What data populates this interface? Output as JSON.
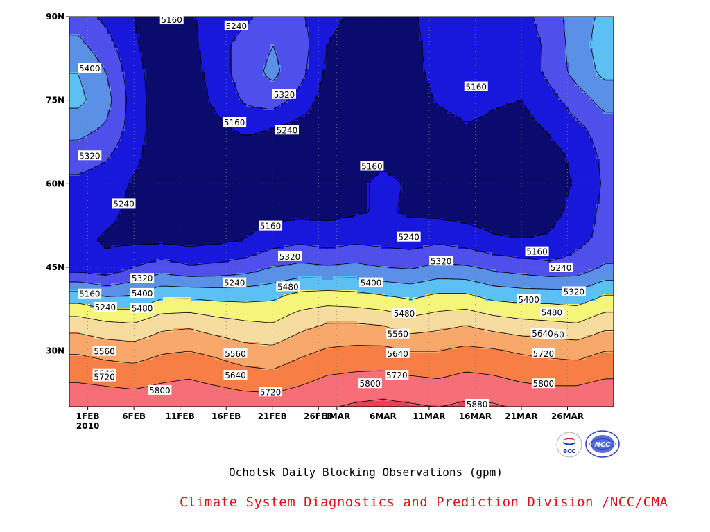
{
  "captions": {
    "title": "Ochotsk Daily Blocking Observations (gpm)",
    "organization": "Climate System Diagnostics and Prediction Division /NCC/CMA"
  },
  "logos": [
    {
      "name": "bcc-logo",
      "text": "BCC"
    },
    {
      "name": "ncc-logo",
      "text": "NCC"
    }
  ],
  "chart_data": {
    "type": "heatmap",
    "subtype": "filled-contour",
    "title": "",
    "xlabel": "",
    "ylabel": "",
    "x_unit": "date (2010)",
    "y_unit": "latitude (degrees N)",
    "xlim": [
      "2010-01-30",
      "2010-03-30"
    ],
    "ylim": [
      20,
      90
    ],
    "grid": true,
    "x_ticks": [
      {
        "day": 2,
        "label": "1FEB",
        "sublabel": "2010"
      },
      {
        "day": 7,
        "label": "6FEB"
      },
      {
        "day": 12,
        "label": "11FEB"
      },
      {
        "day": 17,
        "label": "16FEB"
      },
      {
        "day": 22,
        "label": "21FEB"
      },
      {
        "day": 27,
        "label": "26FEB"
      },
      {
        "day": 29,
        "label": "1MAR"
      },
      {
        "day": 34,
        "label": "6MAR"
      },
      {
        "day": 39,
        "label": "11MAR"
      },
      {
        "day": 44,
        "label": "16MAR"
      },
      {
        "day": 49,
        "label": "21MAR"
      },
      {
        "day": 54,
        "label": "26MAR"
      }
    ],
    "y_ticks": [
      {
        "lat": 30,
        "label": "30N"
      },
      {
        "lat": 45,
        "label": "45N"
      },
      {
        "lat": 60,
        "label": "60N"
      },
      {
        "lat": 75,
        "label": "75N"
      },
      {
        "lat": 90,
        "label": "90N"
      }
    ],
    "levels": [
      5160,
      5240,
      5320,
      5400,
      5480,
      5560,
      5640,
      5720,
      5800,
      5880
    ],
    "level_colors": [
      "#0b0b6e",
      "#1818dd",
      "#4f4fec",
      "#5a90e6",
      "#5cc0f5",
      "#f5f57a",
      "#f7dca0",
      "#f7a86a",
      "#f77e44",
      "#f56e78",
      "#ee3d55"
    ],
    "lats": [
      20,
      25,
      30,
      35,
      40,
      45,
      50,
      55,
      60,
      65,
      70,
      75,
      80,
      85,
      90
    ],
    "days": [
      1,
      4,
      7,
      10,
      13,
      16,
      19,
      22,
      25,
      28,
      31,
      34,
      37,
      40,
      43,
      46,
      49,
      52,
      55,
      58
    ],
    "values": [
      [
        5860,
        5855,
        5850,
        5855,
        5860,
        5860,
        5850,
        5850,
        5860,
        5875,
        5890,
        5900,
        5890,
        5880,
        5895,
        5890,
        5870,
        5860,
        5860,
        5875
      ],
      [
        5790,
        5780,
        5770,
        5790,
        5800,
        5780,
        5760,
        5750,
        5780,
        5810,
        5820,
        5825,
        5810,
        5800,
        5820,
        5810,
        5790,
        5780,
        5780,
        5800
      ],
      [
        5710,
        5690,
        5680,
        5710,
        5720,
        5700,
        5670,
        5660,
        5700,
        5730,
        5740,
        5740,
        5720,
        5720,
        5740,
        5730,
        5710,
        5700,
        5690,
        5720
      ],
      [
        5600,
        5570,
        5560,
        5610,
        5620,
        5590,
        5570,
        5560,
        5610,
        5640,
        5640,
        5630,
        5590,
        5610,
        5630,
        5600,
        5580,
        5570,
        5560,
        5610
      ],
      [
        5430,
        5390,
        5400,
        5460,
        5460,
        5450,
        5450,
        5460,
        5500,
        5510,
        5500,
        5480,
        5460,
        5490,
        5490,
        5450,
        5440,
        5440,
        5430,
        5480
      ],
      [
        5200,
        5180,
        5240,
        5280,
        5250,
        5260,
        5280,
        5320,
        5340,
        5330,
        5340,
        5320,
        5310,
        5340,
        5330,
        5300,
        5280,
        5260,
        5270,
        5330
      ],
      [
        5180,
        5150,
        5140,
        5140,
        5130,
        5140,
        5160,
        5200,
        5220,
        5200,
        5220,
        5210,
        5200,
        5220,
        5200,
        5170,
        5160,
        5170,
        5220,
        5260
      ],
      [
        5200,
        5180,
        5140,
        5120,
        5120,
        5120,
        5120,
        5130,
        5140,
        5140,
        5150,
        5170,
        5150,
        5140,
        5130,
        5120,
        5120,
        5130,
        5190,
        5260
      ],
      [
        5220,
        5200,
        5150,
        5110,
        5110,
        5110,
        5110,
        5110,
        5120,
        5120,
        5140,
        5180,
        5150,
        5130,
        5120,
        5110,
        5110,
        5120,
        5170,
        5250
      ],
      [
        5280,
        5250,
        5180,
        5110,
        5100,
        5100,
        5110,
        5110,
        5110,
        5110,
        5120,
        5140,
        5120,
        5110,
        5110,
        5110,
        5110,
        5130,
        5180,
        5260
      ],
      [
        5350,
        5310,
        5200,
        5110,
        5100,
        5140,
        5180,
        5160,
        5130,
        5110,
        5100,
        5100,
        5100,
        5120,
        5150,
        5140,
        5130,
        5170,
        5220,
        5280
      ],
      [
        5420,
        5350,
        5200,
        5110,
        5110,
        5180,
        5250,
        5280,
        5210,
        5120,
        5100,
        5100,
        5110,
        5170,
        5200,
        5170,
        5160,
        5210,
        5280,
        5350
      ],
      [
        5400,
        5320,
        5190,
        5110,
        5120,
        5200,
        5280,
        5340,
        5270,
        5140,
        5100,
        5100,
        5130,
        5190,
        5200,
        5160,
        5180,
        5260,
        5350,
        5420
      ],
      [
        5340,
        5270,
        5170,
        5110,
        5130,
        5220,
        5260,
        5320,
        5280,
        5160,
        5110,
        5100,
        5140,
        5190,
        5200,
        5170,
        5190,
        5260,
        5360,
        5440
      ],
      [
        5280,
        5220,
        5160,
        5120,
        5150,
        5200,
        5230,
        5260,
        5250,
        5190,
        5140,
        5120,
        5150,
        5190,
        5210,
        5190,
        5210,
        5280,
        5360,
        5420
      ]
    ],
    "contour_labels": [
      {
        "day": 11.1,
        "lat": 89.5,
        "text": "5160"
      },
      {
        "day": 18.1,
        "lat": 88.4,
        "text": "5240"
      },
      {
        "day": 2.2,
        "lat": 80.8,
        "text": "5400"
      },
      {
        "day": 23.3,
        "lat": 76.1,
        "text": "5320"
      },
      {
        "day": 44.1,
        "lat": 77.5,
        "text": "5160"
      },
      {
        "day": 17.9,
        "lat": 71.1,
        "text": "5160"
      },
      {
        "day": 23.6,
        "lat": 69.7,
        "text": "5240"
      },
      {
        "day": 2.2,
        "lat": 65.1,
        "text": "5320"
      },
      {
        "day": 32.8,
        "lat": 63.2,
        "text": "5160"
      },
      {
        "day": 5.9,
        "lat": 56.5,
        "text": "5240"
      },
      {
        "day": 21.8,
        "lat": 52.5,
        "text": "5160"
      },
      {
        "day": 36.8,
        "lat": 50.5,
        "text": "5240"
      },
      {
        "day": 50.7,
        "lat": 47.9,
        "text": "5160"
      },
      {
        "day": 23.9,
        "lat": 47.0,
        "text": "5320"
      },
      {
        "day": 40.3,
        "lat": 46.2,
        "text": "5320"
      },
      {
        "day": 53.3,
        "lat": 45.0,
        "text": "5240"
      },
      {
        "day": 17.9,
        "lat": 42.3,
        "text": "5240"
      },
      {
        "day": 7.9,
        "lat": 43.1,
        "text": "5320"
      },
      {
        "day": 32.7,
        "lat": 42.3,
        "text": "5400"
      },
      {
        "day": 23.7,
        "lat": 41.6,
        "text": "5480"
      },
      {
        "day": 54.7,
        "lat": 40.7,
        "text": "5320"
      },
      {
        "day": 2.2,
        "lat": 40.3,
        "text": "5160"
      },
      {
        "day": 7.9,
        "lat": 40.4,
        "text": "5400"
      },
      {
        "day": 49.8,
        "lat": 39.3,
        "text": "5400"
      },
      {
        "day": 3.9,
        "lat": 37.9,
        "text": "5240"
      },
      {
        "day": 7.9,
        "lat": 37.7,
        "text": "5480"
      },
      {
        "day": 36.3,
        "lat": 36.8,
        "text": "5480"
      },
      {
        "day": 52.3,
        "lat": 37.0,
        "text": "5480"
      },
      {
        "day": 52.5,
        "lat": 33.0,
        "text": "5560"
      },
      {
        "day": 35.6,
        "lat": 33.1,
        "text": "5560"
      },
      {
        "day": 51.3,
        "lat": 33.2,
        "text": "5640"
      },
      {
        "day": 3.8,
        "lat": 30.0,
        "text": "5560"
      },
      {
        "day": 18.0,
        "lat": 29.6,
        "text": "5560"
      },
      {
        "day": 35.6,
        "lat": 29.6,
        "text": "5640"
      },
      {
        "day": 51.4,
        "lat": 29.6,
        "text": "5720"
      },
      {
        "day": 3.8,
        "lat": 26.0,
        "text": "5640"
      },
      {
        "day": 18.0,
        "lat": 25.7,
        "text": "5640"
      },
      {
        "day": 35.5,
        "lat": 25.7,
        "text": "5720"
      },
      {
        "day": 3.8,
        "lat": 25.4,
        "text": "5720"
      },
      {
        "day": 32.6,
        "lat": 24.2,
        "text": "5800"
      },
      {
        "day": 51.4,
        "lat": 24.2,
        "text": "5800"
      },
      {
        "day": 9.8,
        "lat": 23.0,
        "text": "5800"
      },
      {
        "day": 21.8,
        "lat": 22.7,
        "text": "5720"
      },
      {
        "day": 44.2,
        "lat": 20.5,
        "text": "5880"
      }
    ]
  }
}
